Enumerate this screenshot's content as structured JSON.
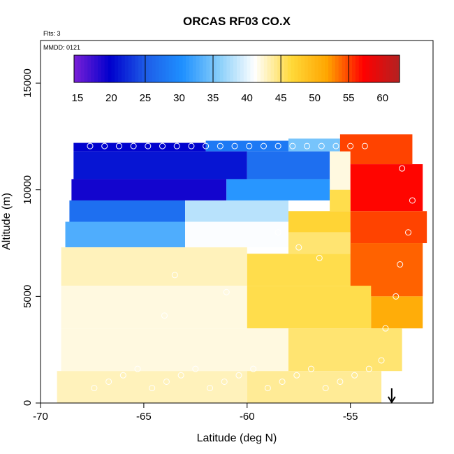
{
  "chart_data": {
    "type": "heatmap",
    "title": "ORCAS RF03 CO.X",
    "xlabel": "Latitude (deg N)",
    "ylabel": "Altitude (m)",
    "xlim": [
      -70,
      -51
    ],
    "ylim": [
      0,
      17000
    ],
    "x_ticks": [
      -70,
      -65,
      -60,
      -55
    ],
    "y_ticks": [
      0,
      5000,
      10000,
      15000
    ],
    "flights_note": "Flts: 3",
    "date_note": "MMDD: 0121",
    "colorbar": {
      "min": 14.5,
      "max": 62.5,
      "ticks": [
        15,
        20,
        25,
        30,
        35,
        40,
        45,
        50,
        55,
        60
      ],
      "colors": [
        "#7a1fd6",
        "#0000cd",
        "#1e5ee8",
        "#1e90ff",
        "#87cefa",
        "#ffffff",
        "#ffd93a",
        "#ffa500",
        "#ff0000",
        "#b22222"
      ]
    },
    "arrow_marker_latitude": -53,
    "regions": [
      {
        "lat": [
          -68.4,
          -62.0
        ],
        "alt": [
          11800,
          12200
        ],
        "value": 20
      },
      {
        "lat": [
          -62.0,
          -58.0
        ],
        "alt": [
          11800,
          12300
        ],
        "value": 28
      },
      {
        "lat": [
          -58.0,
          -55.5
        ],
        "alt": [
          11800,
          12400
        ],
        "value": 35
      },
      {
        "lat": [
          -55.5,
          -52.0
        ],
        "alt": [
          11200,
          12600
        ],
        "value": 55
      },
      {
        "lat": [
          -68.4,
          -60.0
        ],
        "alt": [
          10500,
          11800
        ],
        "value": 21
      },
      {
        "lat": [
          -60.0,
          -56.0
        ],
        "alt": [
          10500,
          11800
        ],
        "value": 27
      },
      {
        "lat": [
          -56.0,
          -55.0
        ],
        "alt": [
          10000,
          11800
        ],
        "value": 42
      },
      {
        "lat": [
          -55.0,
          -51.5
        ],
        "alt": [
          9000,
          11200
        ],
        "value": 57
      },
      {
        "lat": [
          -68.5,
          -61.0
        ],
        "alt": [
          9500,
          10500
        ],
        "value": 19
      },
      {
        "lat": [
          -61.0,
          -56.0
        ],
        "alt": [
          9500,
          10500
        ],
        "value": 31
      },
      {
        "lat": [
          -56.0,
          -55.0
        ],
        "alt": [
          9000,
          10000
        ],
        "value": 46
      },
      {
        "lat": [
          -68.6,
          -63.0
        ],
        "alt": [
          8500,
          9500
        ],
        "value": 27
      },
      {
        "lat": [
          -63.0,
          -58.0
        ],
        "alt": [
          8500,
          9500
        ],
        "value": 38
      },
      {
        "lat": [
          -58.0,
          -55.0
        ],
        "alt": [
          8000,
          9000
        ],
        "value": 47
      },
      {
        "lat": [
          -55.0,
          -51.3
        ],
        "alt": [
          7500,
          9000
        ],
        "value": 55
      },
      {
        "lat": [
          -68.8,
          -63.0
        ],
        "alt": [
          7300,
          8500
        ],
        "value": 33
      },
      {
        "lat": [
          -63.0,
          -58.0
        ],
        "alt": [
          7300,
          8500
        ],
        "value": 41
      },
      {
        "lat": [
          -58.0,
          -55.0
        ],
        "alt": [
          7000,
          8000
        ],
        "value": 45
      },
      {
        "lat": [
          -69.0,
          -60.0
        ],
        "alt": [
          5500,
          7300
        ],
        "value": 43
      },
      {
        "lat": [
          -60.0,
          -55.0
        ],
        "alt": [
          5500,
          7000
        ],
        "value": 46
      },
      {
        "lat": [
          -55.0,
          -51.5
        ],
        "alt": [
          5000,
          7500
        ],
        "value": 54
      },
      {
        "lat": [
          -69.0,
          -60.0
        ],
        "alt": [
          3500,
          5500
        ],
        "value": 42
      },
      {
        "lat": [
          -60.0,
          -54.0
        ],
        "alt": [
          3500,
          5500
        ],
        "value": 46
      },
      {
        "lat": [
          -54.0,
          -51.5
        ],
        "alt": [
          3500,
          5000
        ],
        "value": 51
      },
      {
        "lat": [
          -69.0,
          -58.0
        ],
        "alt": [
          1500,
          3500
        ],
        "value": 42
      },
      {
        "lat": [
          -58.0,
          -52.5
        ],
        "alt": [
          1500,
          3500
        ],
        "value": 45
      },
      {
        "lat": [
          -69.2,
          -60.0
        ],
        "alt": [
          0,
          1500
        ],
        "value": 43
      },
      {
        "lat": [
          -60.0,
          -53.5
        ],
        "alt": [
          0,
          1500
        ],
        "value": 44
      }
    ],
    "grid": false,
    "legend_placement": "top"
  }
}
